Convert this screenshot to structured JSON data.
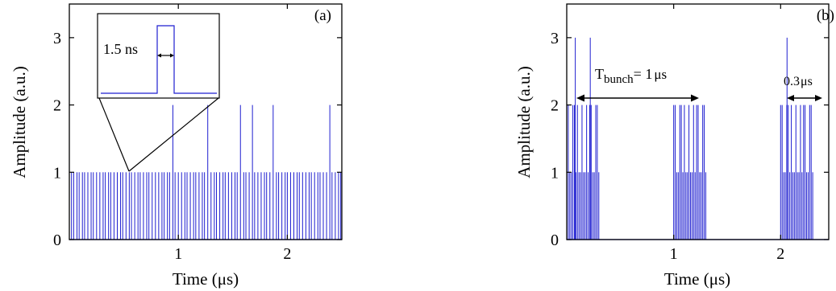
{
  "chart_data": [
    {
      "panel_label": "(a)",
      "type": "line",
      "xlabel": "Time (μs)",
      "ylabel": "Amplitude (a.u.)",
      "xlim": [
        0,
        2.5
      ],
      "ylim": [
        0,
        3.5
      ],
      "xticks": [
        {
          "v": 1,
          "label": "1"
        },
        {
          "v": 2,
          "label": "2"
        }
      ],
      "yticks": [
        {
          "v": 0,
          "label": "0"
        },
        {
          "v": 1,
          "label": "1"
        },
        {
          "v": 2,
          "label": "2"
        },
        {
          "v": 3,
          "label": "3"
        }
      ],
      "pulse_times_us": [
        0.02,
        0.04,
        0.07,
        0.09,
        0.12,
        0.14,
        0.17,
        0.2,
        0.22,
        0.25,
        0.28,
        0.31,
        0.33,
        0.36,
        0.38,
        0.41,
        0.44,
        0.47,
        0.49,
        0.52,
        0.55,
        0.57,
        0.6,
        0.63,
        0.65,
        0.68,
        0.71,
        0.73,
        0.76,
        0.79,
        0.82,
        0.85,
        0.87,
        0.9,
        0.92,
        0.95,
        0.97,
        1.0,
        1.03,
        1.06,
        1.08,
        1.11,
        1.14,
        1.16,
        1.19,
        1.22,
        1.24,
        1.27,
        1.3,
        1.33,
        1.35,
        1.38,
        1.41,
        1.43,
        1.46,
        1.49,
        1.52,
        1.54,
        1.57,
        1.6,
        1.62,
        1.65,
        1.68,
        1.7,
        1.73,
        1.76,
        1.79,
        1.81,
        1.84,
        1.87,
        1.9,
        1.92,
        1.95,
        1.98,
        2.0,
        2.03,
        2.06,
        2.09,
        2.11,
        2.14,
        2.17,
        2.2,
        2.22,
        2.25,
        2.28,
        2.3,
        2.33,
        2.36,
        2.39,
        2.41,
        2.44,
        2.47,
        2.49
      ],
      "pulse_amplitudes": [
        1,
        1,
        1,
        1,
        1,
        1,
        1,
        1,
        1,
        1,
        1,
        1,
        1,
        1,
        1,
        1,
        1,
        1,
        1,
        1,
        1,
        1,
        1,
        1,
        1,
        1,
        1,
        1,
        1,
        1,
        1,
        1,
        1,
        1,
        1,
        2,
        1,
        1,
        1,
        1,
        1,
        1,
        1,
        1,
        1,
        1,
        1,
        2,
        1,
        1,
        1,
        1,
        1,
        1,
        1,
        1,
        1,
        1,
        2,
        1,
        1,
        1,
        2,
        1,
        1,
        1,
        1,
        1,
        1,
        2,
        1,
        1,
        1,
        1,
        1,
        1,
        1,
        1,
        1,
        1,
        1,
        1,
        1,
        1,
        1,
        1,
        1,
        1,
        2,
        1,
        1,
        1,
        1
      ],
      "inset": {
        "label": "1.5 ns",
        "pulse_width_ns": 1.5,
        "zoom_time_us": 0.6
      }
    },
    {
      "panel_label": "(b)",
      "type": "line",
      "xlabel": "Time (μs)",
      "ylabel": "Amplitude (a.u.)",
      "xlim": [
        0,
        2.45
      ],
      "ylim": [
        0,
        3.5
      ],
      "xticks": [
        {
          "v": 1,
          "label": "1"
        },
        {
          "v": 2,
          "label": "2"
        }
      ],
      "yticks": [
        {
          "v": 0,
          "label": "0"
        },
        {
          "v": 1,
          "label": "1"
        },
        {
          "v": 2,
          "label": "2"
        },
        {
          "v": 3,
          "label": "3"
        }
      ],
      "bunches": [
        {
          "start_us": 0.0,
          "end_us": 0.3
        },
        {
          "start_us": 1.0,
          "end_us": 1.3
        },
        {
          "start_us": 2.0,
          "end_us": 2.3
        }
      ],
      "pulses_per_bunch": 22,
      "peak_pulses": [
        {
          "t": 0.08,
          "amp": 3
        },
        {
          "t": 0.22,
          "amp": 3
        },
        {
          "t": 2.06,
          "amp": 3
        }
      ],
      "annotations": {
        "period_label_main": "T",
        "period_label_sub": "bunch",
        "period_label_value": "= 1",
        "period_label_unit": "μs",
        "width_label_value": "0.3",
        "width_label_unit": "μs"
      }
    }
  ]
}
